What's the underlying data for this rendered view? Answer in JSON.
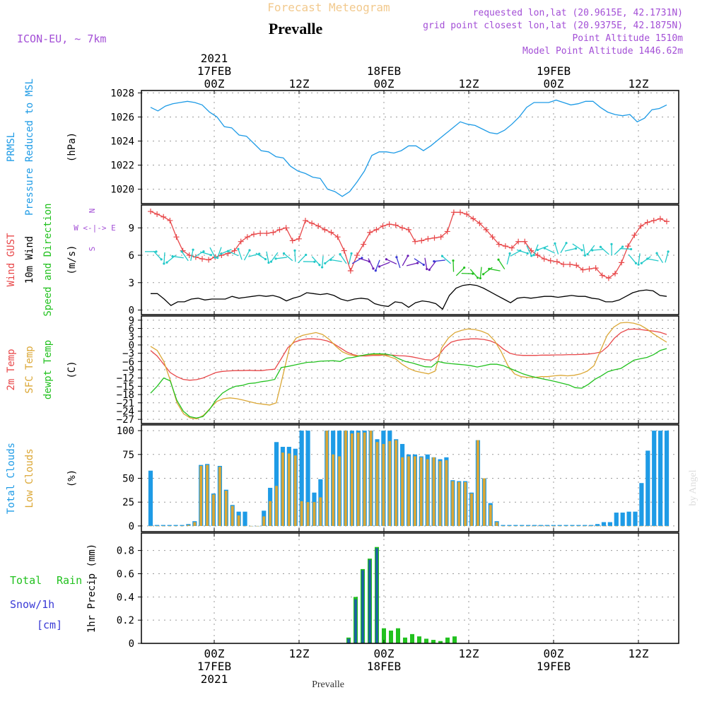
{
  "header": {
    "suptitle": "Forecast Meteogram",
    "title": "Prevalle",
    "model": "ICON-EU, ~ 7km",
    "info": [
      "requested lon,lat (20.9615E, 42.1731N)",
      "grid point closest lon,lat (20.9375E, 42.1875N)",
      "Point Altitude 1510m",
      "Model Point Altitude 1446.62m"
    ],
    "footer": "Prevalle",
    "watermark": "by Angel"
  },
  "time_axis": {
    "ticks": [
      {
        "x": 9,
        "top": [
          "2021",
          "17FEB",
          "00Z"
        ],
        "bottom": [
          "00Z",
          "17FEB",
          "2021"
        ]
      },
      {
        "x": 21,
        "top": [
          "12Z"
        ],
        "bottom": [
          "12Z"
        ]
      },
      {
        "x": 33,
        "top": [
          "18FEB",
          "00Z"
        ],
        "bottom": [
          "00Z",
          "18FEB"
        ]
      },
      {
        "x": 45,
        "top": [
          "12Z"
        ],
        "bottom": [
          "12Z"
        ]
      },
      {
        "x": 57,
        "top": [
          "19FEB",
          "00Z"
        ],
        "bottom": [
          "00Z",
          "19FEB"
        ]
      },
      {
        "x": 69,
        "top": [
          "12Z"
        ],
        "bottom": [
          "12Z"
        ]
      }
    ],
    "range": [
      -1.3,
      74.7
    ]
  },
  "colors": {
    "blue": "#1e9be6",
    "red": "#e8484a",
    "black": "#000000",
    "green": "#22c11f",
    "orange": "#dba735",
    "purple": "#a34fd6",
    "navy": "#3a3ad6",
    "dark_purple": "#6a1bb5"
  },
  "chart_data": [
    {
      "type": "line",
      "id": "pressure",
      "ylabels": [
        {
          "text": "PRMSL",
          "color": "#1e9be6"
        },
        {
          "text": "Pressure Reduced to MSL",
          "color": "#1e9be6"
        },
        {
          "text": "(hPa)",
          "color": "#000000"
        }
      ],
      "ylim": [
        1018.8,
        1028.2
      ],
      "yticks": [
        1020,
        1022,
        1024,
        1026,
        1028
      ],
      "series": [
        {
          "color": "#1e9be6",
          "values": [
            1026.8,
            1026.5,
            1026.9,
            1027.1,
            1027.2,
            1027.3,
            1027.2,
            1027.0,
            1026.4,
            1026.0,
            1025.2,
            1025.1,
            1024.5,
            1024.4,
            1023.8,
            1023.2,
            1023.1,
            1022.7,
            1022.6,
            1021.9,
            1021.5,
            1021.3,
            1021.0,
            1020.9,
            1020.0,
            1019.8,
            1019.4,
            1019.8,
            1020.6,
            1021.5,
            1022.8,
            1023.1,
            1023.1,
            1023.0,
            1023.2,
            1023.6,
            1023.6,
            1023.2,
            1023.6,
            1024.1,
            1024.6,
            1025.1,
            1025.6,
            1025.4,
            1025.3,
            1025.0,
            1024.7,
            1024.6,
            1024.9,
            1025.4,
            1026.0,
            1026.8,
            1027.2,
            1027.2,
            1027.2,
            1027.4,
            1027.2,
            1027.0,
            1027.1,
            1027.3,
            1027.3,
            1026.8,
            1026.4,
            1026.2,
            1026.1,
            1026.2,
            1025.6,
            1025.9,
            1026.6,
            1026.7,
            1027.0
          ]
        }
      ]
    },
    {
      "type": "line",
      "id": "wind",
      "ylabels": [
        {
          "text": "Wind GUST",
          "color": "#e8484a"
        },
        {
          "text": "10m Wind",
          "color": "#000000"
        },
        {
          "text": "Speed and Direction",
          "color": "#22c11f"
        },
        {
          "text": "(m/s)",
          "color": "#000000"
        }
      ],
      "compass": [
        "N",
        "W <-|-> E",
        "S"
      ],
      "ylim": [
        -0.5,
        11.5
      ],
      "yticks": [
        0,
        3,
        6,
        9
      ],
      "series": [
        {
          "name": "Wind GUST",
          "color": "#e8484a",
          "marker": "+",
          "values": [
            10.8,
            10.5,
            10.2,
            9.8,
            8.0,
            6.5,
            6.0,
            5.8,
            5.6,
            5.5,
            5.8,
            6.0,
            6.2,
            6.5,
            7.5,
            8.0,
            8.3,
            8.4,
            8.4,
            8.5,
            8.8,
            9.0,
            7.6,
            7.8,
            9.8,
            9.5,
            9.2,
            8.8,
            8.5,
            8.0,
            6.5,
            4.3,
            6.0,
            7.2,
            8.5,
            8.8,
            9.2,
            9.4,
            9.3,
            9.0,
            8.8,
            7.5,
            7.6,
            7.8,
            7.9,
            8.0,
            8.6,
            10.7,
            10.7,
            10.5,
            10.0,
            9.5,
            8.8,
            8.0,
            7.2,
            7.0,
            6.8,
            7.5,
            7.5,
            6.5,
            6.0,
            5.6,
            5.4,
            5.3,
            5.0,
            5.0,
            4.9,
            4.4,
            4.5,
            4.6,
            3.8,
            3.5,
            4.0,
            5.2,
            7.0,
            8.2,
            9.2,
            9.6,
            9.8,
            10.0,
            9.7
          ]
        },
        {
          "name": "10m Wind",
          "color": "#000000",
          "values": [
            1.8,
            1.8,
            1.2,
            0.5,
            0.9,
            0.9,
            1.2,
            1.3,
            1.1,
            1.2,
            1.2,
            1.2,
            1.5,
            1.3,
            1.4,
            1.5,
            1.6,
            1.5,
            1.6,
            1.4,
            1.0,
            1.3,
            1.5,
            1.9,
            1.8,
            1.7,
            1.8,
            1.6,
            1.2,
            1.0,
            1.2,
            1.3,
            1.2,
            0.7,
            0.5,
            0.4,
            0.9,
            0.8,
            0.3,
            0.8,
            1.0,
            0.9,
            0.7,
            0.1,
            1.6,
            2.4,
            2.7,
            2.8,
            2.7,
            2.4,
            2.0,
            1.6,
            1.2,
            0.8,
            1.3,
            1.4,
            1.3,
            1.4,
            1.5,
            1.5,
            1.4,
            1.5,
            1.6,
            1.5,
            1.5,
            1.3,
            1.2,
            0.9,
            0.9,
            1.1,
            1.5,
            1.9,
            2.1,
            2.2,
            2.1,
            1.6,
            1.5
          ]
        },
        {
          "name": "wind barbs",
          "type": "arrows",
          "values": [
            6.4,
            6.0,
            5.7,
            5.6,
            5.8,
            5.9,
            6.0,
            6.1,
            6.2,
            6.3,
            6.3,
            6.4,
            6.2,
            6.1,
            6.0,
            6.0,
            5.9,
            5.8,
            5.8,
            5.7,
            5.8,
            5.9,
            5.6,
            5.3,
            5.4,
            5.3,
            5.5,
            5.4,
            5.6,
            5.6,
            5.4,
            5.5,
            5.1,
            4.9,
            5.0,
            5.3,
            5.2,
            5.4,
            5.0,
            5.3,
            5.1,
            4.9,
            5.4,
            5.5,
            4.8,
            4.2,
            4.0,
            4.0,
            4.1,
            4.3,
            4.4,
            5.0,
            5.6,
            6.2,
            6.4,
            6.5,
            6.6,
            6.8,
            6.5,
            6.7,
            6.8,
            6.6,
            6.9,
            6.6,
            6.6,
            6.6,
            6.5,
            6.6,
            6.5,
            6.7,
            5.6,
            5.6,
            5.5,
            5.5,
            5.7,
            5.8
          ]
        }
      ]
    },
    {
      "type": "line",
      "id": "temperature",
      "ylabels": [
        {
          "text": "2m Temp",
          "color": "#e8484a"
        },
        {
          "text": "SFC Temp",
          "color": "#dba735"
        },
        {
          "text": "dewpt Temp",
          "color": "#22c11f"
        },
        {
          "text": "(C)",
          "color": "#000000"
        }
      ],
      "ylim": [
        -28.5,
        10.5
      ],
      "yticks": [
        9,
        6,
        3,
        0,
        -3,
        -6,
        -9,
        -12,
        -15,
        -18,
        -21,
        -24,
        -27
      ],
      "series": [
        {
          "name": "2m Temp",
          "color": "#e8484a",
          "values": [
            -2,
            -4,
            -7,
            -10,
            -11.5,
            -12.5,
            -12.8,
            -12.6,
            -12.0,
            -11.0,
            -10.0,
            -9.6,
            -9.4,
            -9.3,
            -9.3,
            -9.2,
            -9.3,
            -9.3,
            -9.0,
            -8.8,
            -5.0,
            -1.0,
            1.0,
            1.8,
            2.2,
            2.2,
            2.0,
            1.5,
            0.5,
            -1.0,
            -2.5,
            -3.5,
            -4.0,
            -4.0,
            -3.8,
            -3.8,
            -3.6,
            -3.7,
            -3.9,
            -4.0,
            -4.3,
            -4.8,
            -5.3,
            -5.5,
            -4.0,
            -1.0,
            1.0,
            1.7,
            2.0,
            2.2,
            2.2,
            2.0,
            1.5,
            0.5,
            -1.5,
            -3.0,
            -3.6,
            -3.8,
            -3.8,
            -3.8,
            -3.7,
            -3.7,
            -3.6,
            -3.6,
            -3.5,
            -3.5,
            -3.4,
            -3.3,
            -3.0,
            -2.5,
            -0.5,
            2.5,
            4.5,
            5.6,
            5.8,
            5.6,
            5.3,
            5.0,
            4.6,
            3.8
          ]
        },
        {
          "name": "SFC Temp",
          "color": "#dba735",
          "values": [
            -0.5,
            -2,
            -6,
            -13,
            -21,
            -25,
            -26.5,
            -26.8,
            -25.5,
            -23,
            -20.5,
            -19.5,
            -19.2,
            -19.5,
            -20.0,
            -20.6,
            -21.2,
            -21.5,
            -21.8,
            -21.0,
            -11,
            -1,
            2.5,
            3.5,
            4.0,
            4.5,
            3.8,
            2.0,
            -0.5,
            -2.5,
            -3.5,
            -4.0,
            -3.8,
            -3.5,
            -3.5,
            -3.5,
            -4.2,
            -5.0,
            -7.0,
            -8.5,
            -9.5,
            -10.0,
            -10.5,
            -9.5,
            -1.0,
            2.5,
            4.5,
            5.3,
            5.8,
            5.6,
            5.0,
            4.0,
            1.5,
            -2.5,
            -7.5,
            -10.5,
            -11.5,
            -11.8,
            -11.8,
            -11.5,
            -11.5,
            -11.2,
            -11.0,
            -11.2,
            -11.0,
            -10.5,
            -9.5,
            -7.5,
            -2.0,
            3.5,
            6.5,
            8.0,
            8.2,
            7.9,
            7.2,
            5.8,
            4.0,
            2.5,
            1.0
          ]
        },
        {
          "name": "dewpt Temp",
          "color": "#22c11f",
          "values": [
            -17.5,
            -15,
            -12,
            -13,
            -20,
            -24,
            -26,
            -26.5,
            -26,
            -23.5,
            -20,
            -17.5,
            -16.0,
            -15.0,
            -14.7,
            -14.0,
            -13.8,
            -13.3,
            -13.0,
            -12.5,
            -8.2,
            -7.8,
            -7.3,
            -6.8,
            -6.3,
            -6.2,
            -5.9,
            -5.8,
            -5.7,
            -6.0,
            -4.8,
            -4.5,
            -4.0,
            -3.5,
            -3.2,
            -3.2,
            -3.3,
            -3.8,
            -5.0,
            -6.0,
            -6.5,
            -7.2,
            -7.9,
            -8.0,
            -6.0,
            -6.5,
            -6.8,
            -7.0,
            -7.2,
            -7.5,
            -8.0,
            -7.5,
            -7.0,
            -7.0,
            -7.5,
            -8.5,
            -9.5,
            -10.5,
            -11.2,
            -11.8,
            -12.3,
            -12.8,
            -13.3,
            -13.9,
            -14.5,
            -15.5,
            -15.7,
            -14.3,
            -12.5,
            -11.2,
            -9.7,
            -9.0,
            -8.5,
            -7.0,
            -5.5,
            -5.0,
            -4.5,
            -3.5,
            -2.0,
            -1.3
          ]
        }
      ]
    },
    {
      "type": "bar",
      "id": "clouds",
      "ylabels": [
        {
          "text": "Total Clouds",
          "color": "#1e9be6"
        },
        {
          "text": "Low Clouds",
          "color": "#dba735"
        },
        {
          "text": "(%)",
          "color": "#000000"
        }
      ],
      "ylim": [
        -6,
        106
      ],
      "yticks": [
        0,
        25,
        50,
        75,
        100
      ],
      "series": [
        {
          "name": "Total Clouds",
          "color": "#1e9be6",
          "values": [
            58,
            1,
            1,
            1,
            1,
            1,
            2,
            5,
            64,
            65,
            34,
            63,
            38,
            22,
            15,
            15,
            0,
            0,
            16,
            40,
            88,
            83,
            83,
            81,
            100,
            100,
            35,
            49,
            100,
            100,
            100,
            100,
            100,
            100,
            100,
            100,
            91,
            100,
            100,
            91,
            86,
            75,
            75,
            73,
            75,
            72,
            70,
            72,
            48,
            47,
            47,
            35,
            90,
            50,
            24,
            5,
            1,
            1,
            1,
            1,
            1,
            1,
            1,
            1,
            1,
            1,
            1,
            1,
            1,
            1,
            1,
            2,
            4,
            4,
            14,
            14,
            15,
            15,
            45,
            79,
            100,
            100,
            100
          ]
        },
        {
          "name": "Low Clouds",
          "color": "#dba735",
          "values": [
            0,
            0,
            0,
            0,
            0,
            0,
            1,
            4,
            63,
            64,
            33,
            62,
            37,
            21,
            11,
            0,
            0,
            0,
            10,
            26,
            42,
            77,
            76,
            74,
            26,
            25,
            25,
            30,
            100,
            75,
            73,
            100,
            97,
            98,
            98,
            100,
            88,
            86,
            89,
            90,
            72,
            73,
            73,
            72,
            70,
            72,
            68,
            69,
            47,
            46,
            46,
            34,
            90,
            50,
            22,
            4,
            0,
            0,
            0,
            0,
            0,
            0,
            0,
            0,
            0,
            0,
            0,
            0,
            0,
            0,
            0,
            0,
            0,
            0,
            0,
            0,
            0,
            0,
            0,
            0,
            0,
            0,
            0
          ]
        }
      ]
    },
    {
      "type": "bar",
      "id": "precip",
      "ylabels": [
        {
          "text": "Total",
          "color": "#22c11f"
        },
        {
          "text": "Rain",
          "color": "#22c11f"
        },
        {
          "text": "Snow/1h",
          "color": "#3a3ad6"
        },
        {
          "text": "[cm]",
          "color": "#3a3ad6"
        },
        {
          "text": "1hr Precip (mm)",
          "color": "#000000"
        }
      ],
      "ylim": [
        0,
        0.95
      ],
      "yticks": [
        0,
        0.2,
        0.4,
        0.6,
        0.8
      ],
      "series": [
        {
          "name": "Total Rain",
          "color": "#22c11f",
          "x": [
            28,
            29,
            30,
            31,
            32,
            33,
            34,
            35,
            36,
            37,
            38,
            39,
            40,
            41,
            42,
            43
          ],
          "values": [
            0.05,
            0.4,
            0.64,
            0.73,
            0.83,
            0.13,
            0.11,
            0.13,
            0.05,
            0.08,
            0.06,
            0.04,
            0.03,
            0.02,
            0.05,
            0.06
          ]
        },
        {
          "name": "Snow",
          "color": "#1e5ea8",
          "x": [
            28,
            29,
            30,
            31,
            32
          ],
          "values": [
            0.04,
            0.38,
            0.63,
            0.72,
            0.82
          ]
        }
      ]
    }
  ]
}
